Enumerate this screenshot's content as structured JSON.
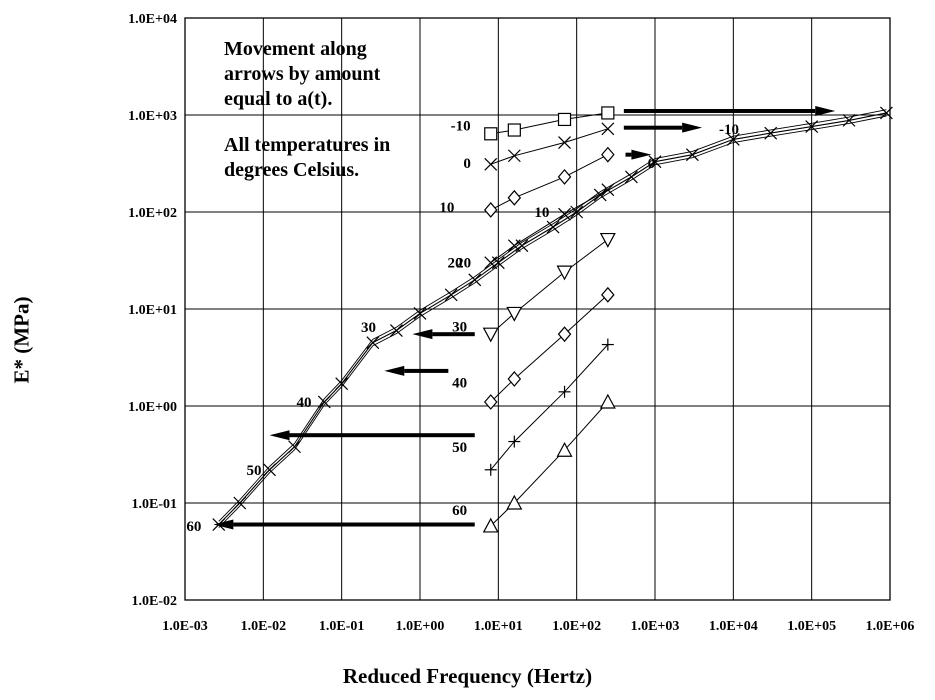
{
  "chart_data": {
    "type": "scatter",
    "title": "",
    "xlabel": "Reduced Frequency (Hertz)",
    "ylabel": "E* (MPa)",
    "xscale": "log",
    "yscale": "log",
    "xlim": [
      0.001,
      1000000
    ],
    "ylim": [
      0.01,
      10000
    ],
    "grid": true,
    "xticks": [
      "1.0E-03",
      "1.0E-02",
      "1.0E-01",
      "1.0E+00",
      "1.0E+01",
      "1.0E+02",
      "1.0E+03",
      "1.0E+04",
      "1.0E+05",
      "1.0E+06"
    ],
    "yticks": [
      "1.0E-02",
      "1.0E-01",
      "1.0E+00",
      "1.0E+01",
      "1.0E+02",
      "1.0E+03",
      "1.0E+04"
    ],
    "annotations": [
      [
        "Movement along",
        "arrows by amount",
        "equal to a(t)."
      ],
      [
        "All temperatures in",
        "degrees Celsius."
      ]
    ],
    "measured_series": [
      {
        "temp_label": "-10",
        "marker": "square",
        "x": [
          8,
          16,
          70,
          250
        ],
        "y": [
          640,
          700,
          900,
          1050
        ]
      },
      {
        "temp_label": "0",
        "marker": "x",
        "x": [
          8,
          16,
          70,
          250
        ],
        "y": [
          310,
          380,
          520,
          720
        ]
      },
      {
        "temp_label": "10",
        "marker": "diamond",
        "x": [
          8,
          16,
          70,
          250
        ],
        "y": [
          105,
          140,
          230,
          390
        ]
      },
      {
        "temp_label": "20",
        "marker": "x",
        "x": [
          8,
          16,
          70,
          250
        ],
        "y": [
          30,
          45,
          95,
          170
        ]
      },
      {
        "temp_label": "30",
        "marker": "triangle-down",
        "x": [
          8,
          16,
          70,
          250
        ],
        "y": [
          5.5,
          9,
          24,
          52
        ]
      },
      {
        "temp_label": "40",
        "marker": "diamond",
        "x": [
          8,
          16,
          70,
          250
        ],
        "y": [
          1.1,
          1.9,
          5.5,
          14
        ]
      },
      {
        "temp_label": "50",
        "marker": "plus",
        "x": [
          8,
          16,
          70,
          250
        ],
        "y": [
          0.22,
          0.43,
          1.4,
          4.3
        ]
      },
      {
        "temp_label": "60",
        "marker": "triangle",
        "x": [
          8,
          16,
          70,
          250
        ],
        "y": [
          0.058,
          0.1,
          0.35,
          1.1
        ]
      }
    ],
    "master_curve": {
      "marker": "x",
      "x": [
        0.0027,
        0.005,
        0.012,
        0.025,
        0.06,
        0.1,
        0.25,
        0.5,
        1,
        2.5,
        5,
        10,
        20,
        50,
        100,
        200,
        500,
        1000,
        3000,
        10000,
        30000,
        100000,
        300000,
        900000
      ],
      "y": [
        0.06,
        0.1,
        0.22,
        0.38,
        1.1,
        1.7,
        4.5,
        6,
        9,
        14,
        20,
        30,
        45,
        70,
        100,
        150,
        230,
        330,
        390,
        560,
        650,
        760,
        880,
        1050
      ]
    },
    "shift_arrows": [
      {
        "temp_label": "-10",
        "direction": "right",
        "from": [
          400,
          1100
        ],
        "to": [
          200000,
          1100
        ]
      },
      {
        "temp_label": "0",
        "direction": "right",
        "from": [
          400,
          740
        ],
        "to": [
          4000,
          740
        ]
      },
      {
        "temp_label": "",
        "direction": "right",
        "from": [
          420,
          390
        ],
        "to": [
          900,
          390
        ]
      },
      {
        "temp_label": "30",
        "direction": "left",
        "from": [
          5,
          5.5
        ],
        "to": [
          0.8,
          5.5
        ]
      },
      {
        "temp_label": "40",
        "direction": "left",
        "from": [
          2.3,
          2.3
        ],
        "to": [
          0.35,
          2.3
        ]
      },
      {
        "temp_label": "50",
        "direction": "left",
        "from": [
          5,
          0.5
        ],
        "to": [
          0.012,
          0.5
        ]
      },
      {
        "temp_label": "60",
        "direction": "left",
        "from": [
          5,
          0.06
        ],
        "to": [
          0.0023,
          0.06
        ]
      }
    ],
    "curve_labels": [
      {
        "text": "-10",
        "x": 3.3,
        "y": 780
      },
      {
        "text": "0",
        "x": 4.0,
        "y": 320
      },
      {
        "text": "10",
        "x": 2.2,
        "y": 112
      },
      {
        "text": "20",
        "x": 2.8,
        "y": 30
      },
      {
        "text": "30",
        "x": 3.2,
        "y": 6.6
      },
      {
        "text": "40",
        "x": 3.2,
        "y": 1.75
      },
      {
        "text": "50",
        "x": 3.2,
        "y": 0.38
      },
      {
        "text": "60",
        "x": 3.2,
        "y": 0.085
      },
      {
        "text": "10",
        "x": 36,
        "y": 100
      },
      {
        "text": "-10",
        "x": 8800,
        "y": 720
      },
      {
        "text": "0",
        "x": 900,
        "y": 320
      },
      {
        "text": "20",
        "x": 3.6,
        "y": 30
      },
      {
        "text": "30",
        "x": 0.22,
        "y": 6.5
      },
      {
        "text": "40",
        "x": 0.033,
        "y": 1.1
      },
      {
        "text": "50",
        "x": 0.0076,
        "y": 0.22
      },
      {
        "text": "60",
        "x": 0.0013,
        "y": 0.058
      }
    ]
  }
}
